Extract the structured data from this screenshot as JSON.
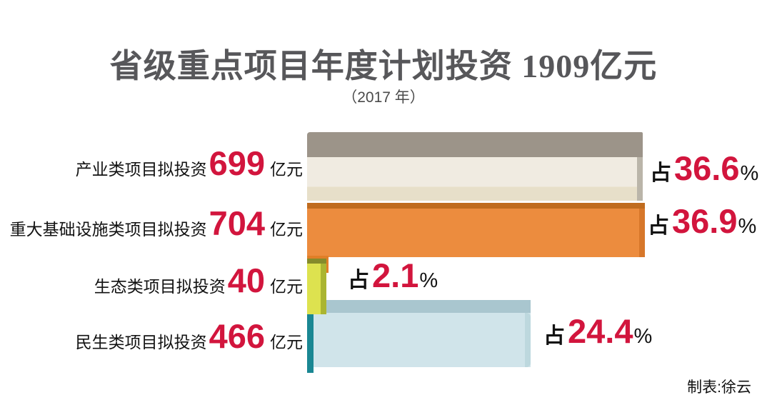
{
  "title": "省级重点项目年度计划投资 1909亿元",
  "subtitle": "（2017 年）",
  "credit": "制表:徐云",
  "colors": {
    "number_red": "#d2153d",
    "label_black": "#121212",
    "title_gray": "#57575a"
  },
  "chart_data": {
    "type": "bar",
    "orientation": "horizontal",
    "title": "省级重点项目年度计划投资 1909亿元",
    "subtitle": "（2017 年）",
    "year": "2017",
    "unit": "亿元",
    "total": 1909,
    "grid": false,
    "legend": false,
    "categories": [
      "产业类项目拟投资",
      "重大基础设施类项目拟投资",
      "生态类项目拟投资",
      "民生类项目拟投资"
    ],
    "values": [
      699,
      704,
      40,
      466
    ],
    "percents": [
      36.6,
      36.9,
      2.1,
      24.4
    ],
    "rows": [
      {
        "label": "产业类项目拟投资",
        "value": 699,
        "unit": "亿元",
        "pct_prefix": "占",
        "percent": "36.6",
        "pct_suffix": "%",
        "colors": {
          "top": "#9c9489",
          "front": "#f0ebe1",
          "side": "#bab5a9",
          "accent": "#e7dfc9"
        }
      },
      {
        "label": "重大基础设施类项目拟投资",
        "value": 704,
        "unit": "亿元",
        "pct_prefix": "占",
        "percent": "36.9",
        "pct_suffix": "%",
        "colors": {
          "top": "#c06c1f",
          "front": "#ec8c3e",
          "side": "#d7772a",
          "accent": "#e07f27"
        }
      },
      {
        "label": "生态类项目拟投资",
        "value": 40,
        "unit": "亿元",
        "pct_prefix": "占",
        "percent": "2.1",
        "pct_suffix": "%",
        "colors": {
          "top": "#858b2b",
          "front": "#dde24f",
          "side": "#aab531",
          "accent": "#c5cf45"
        }
      },
      {
        "label": "民生类项目拟投资",
        "value": 466,
        "unit": "亿元",
        "pct_prefix": "占",
        "percent": "24.4",
        "pct_suffix": "%",
        "colors": {
          "top": "#a9c6cf",
          "front": "#d0e4ea",
          "side": "#bdd8de",
          "accent": "#1a8793"
        }
      }
    ],
    "credit": "制表:徐云"
  }
}
